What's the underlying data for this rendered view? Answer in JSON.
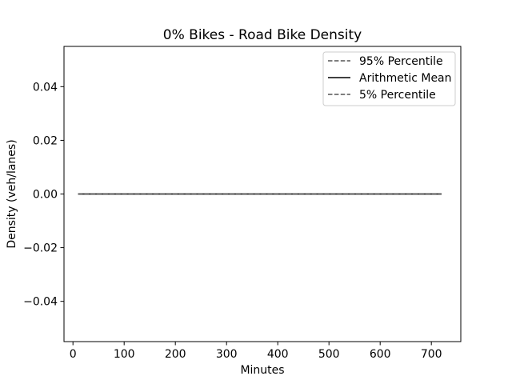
{
  "chart_data": {
    "type": "line",
    "title": "0% Bikes - Road Bike Density",
    "xlabel": "Minutes",
    "ylabel": "Density (veh/lanes)",
    "xlim": [
      -17.5,
      757.5
    ],
    "ylim": [
      -0.055,
      0.055
    ],
    "xticks": [
      0,
      100,
      200,
      300,
      400,
      500,
      600,
      700
    ],
    "xtick_labels": [
      "0",
      "100",
      "200",
      "300",
      "400",
      "500",
      "600",
      "700"
    ],
    "yticks": [
      -0.04,
      -0.02,
      0.0,
      0.02,
      0.04
    ],
    "ytick_labels": [
      "−0.04",
      "−0.02",
      "0.00",
      "0.02",
      "0.04"
    ],
    "grid": false,
    "legend_position": "top-right",
    "series": [
      {
        "name": "95% Percentile",
        "style": "dashed",
        "color": "#555555",
        "x": [
          10,
          720
        ],
        "y": [
          0,
          0
        ]
      },
      {
        "name": "Arithmetic Mean",
        "style": "solid",
        "color": "#000000",
        "x": [
          10,
          720
        ],
        "y": [
          0,
          0
        ]
      },
      {
        "name": "5% Percentile",
        "style": "dashed",
        "color": "#555555",
        "x": [
          10,
          720
        ],
        "y": [
          0,
          0
        ]
      }
    ]
  }
}
